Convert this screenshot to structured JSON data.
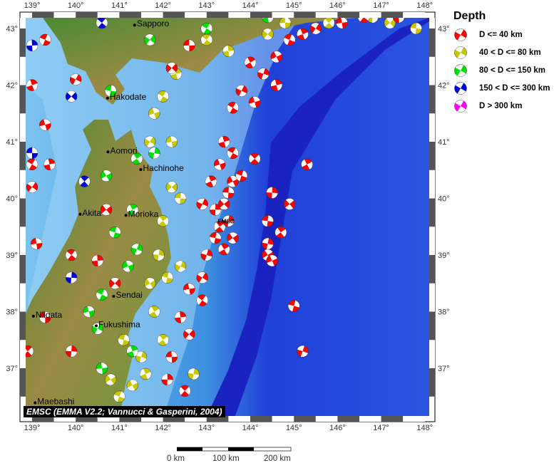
{
  "map": {
    "lon_ticks": [
      "139°",
      "140°",
      "141°",
      "142°",
      "143°",
      "144°",
      "145°",
      "146°",
      "147°",
      "148°"
    ],
    "lat_ticks": [
      "43°",
      "42°",
      "41°",
      "40°",
      "39°",
      "38°",
      "37°"
    ],
    "lon_range": [
      138.9,
      148.1
    ],
    "lat_range": [
      36.2,
      43.2
    ],
    "cities": [
      {
        "name": "Sapporo",
        "lon": 141.35,
        "lat": 43.06
      },
      {
        "name": "Hakodate",
        "lon": 140.73,
        "lat": 41.77
      },
      {
        "name": "Aomori",
        "lon": 140.74,
        "lat": 40.82
      },
      {
        "name": "Hachinohe",
        "lon": 141.49,
        "lat": 40.51
      },
      {
        "name": "Akita",
        "lon": 140.1,
        "lat": 39.72
      },
      {
        "name": "Morioka",
        "lon": 141.15,
        "lat": 39.7
      },
      {
        "name": "Sendai",
        "lon": 140.87,
        "lat": 38.27
      },
      {
        "name": "Niigata",
        "lon": 139.03,
        "lat": 37.92
      },
      {
        "name": "Fukushima",
        "lon": 140.47,
        "lat": 37.75
      },
      {
        "name": "Maebashi",
        "lon": 139.07,
        "lat": 36.39
      }
    ],
    "marker_label": "EMSC",
    "marker_label_pos": {
      "lon": 143.45,
      "lat": 39.6
    },
    "events": [
      [
        143.2,
        39.8,
        1
      ],
      [
        143.4,
        39.9,
        1
      ],
      [
        143.5,
        40.1,
        1
      ],
      [
        143.3,
        39.5,
        1
      ],
      [
        143.5,
        39.6,
        1
      ],
      [
        143.6,
        39.3,
        1
      ],
      [
        143.2,
        39.3,
        1
      ],
      [
        143.4,
        39.1,
        1
      ],
      [
        143.0,
        39.0,
        1
      ],
      [
        143.6,
        40.3,
        1
      ],
      [
        143.8,
        40.4,
        1
      ],
      [
        143.1,
        40.3,
        1
      ],
      [
        142.9,
        39.9,
        1
      ],
      [
        143.3,
        40.6,
        1
      ],
      [
        143.6,
        40.8,
        1
      ],
      [
        143.4,
        41.0,
        1
      ],
      [
        142.9,
        38.6,
        1
      ],
      [
        142.6,
        38.4,
        1
      ],
      [
        142.9,
        38.2,
        1
      ],
      [
        142.4,
        37.9,
        1
      ],
      [
        142.6,
        37.6,
        1
      ],
      [
        142.2,
        37.2,
        1
      ],
      [
        142.5,
        36.6,
        1
      ],
      [
        142.1,
        36.8,
        1
      ],
      [
        142.2,
        40.2,
        2
      ],
      [
        142.4,
        40.0,
        2
      ],
      [
        142.0,
        39.6,
        2
      ],
      [
        141.9,
        39.0,
        2
      ],
      [
        141.7,
        38.5,
        2
      ],
      [
        142.1,
        38.6,
        2
      ],
      [
        141.8,
        38.0,
        2
      ],
      [
        141.5,
        37.2,
        2
      ],
      [
        141.3,
        36.7,
        2
      ],
      [
        141.0,
        36.5,
        2
      ],
      [
        141.6,
        36.9,
        2
      ],
      [
        142.4,
        38.8,
        2
      ],
      [
        141.8,
        41.5,
        2
      ],
      [
        142.0,
        41.8,
        2
      ],
      [
        142.3,
        42.2,
        2
      ],
      [
        141.7,
        41.0,
        2
      ],
      [
        142.2,
        41.0,
        2
      ],
      [
        143.0,
        42.8,
        2
      ],
      [
        143.5,
        42.6,
        2
      ],
      [
        144.4,
        42.9,
        2
      ],
      [
        144.8,
        43.1,
        2
      ],
      [
        145.8,
        43.1,
        2
      ],
      [
        146.8,
        43.2,
        2
      ],
      [
        147.2,
        43.1,
        2
      ],
      [
        147.8,
        43.0,
        2
      ],
      [
        142.0,
        37.5,
        2
      ],
      [
        142.7,
        36.9,
        2
      ],
      [
        140.8,
        36.8,
        2
      ],
      [
        141.1,
        37.5,
        2
      ],
      [
        144.0,
        42.4,
        1
      ],
      [
        144.3,
        42.2,
        1
      ],
      [
        144.6,
        42.5,
        1
      ],
      [
        144.9,
        42.8,
        1
      ],
      [
        145.2,
        42.9,
        1
      ],
      [
        143.8,
        41.9,
        1
      ],
      [
        144.1,
        41.7,
        1
      ],
      [
        143.6,
        41.6,
        1
      ],
      [
        144.6,
        42.0,
        1
      ],
      [
        145.5,
        43.0,
        1
      ],
      [
        146.1,
        43.1,
        1
      ],
      [
        146.6,
        43.2,
        1
      ],
      [
        147.4,
        43.2,
        1
      ],
      [
        142.2,
        42.3,
        1
      ],
      [
        142.6,
        42.7,
        1
      ],
      [
        144.1,
        40.7,
        1
      ],
      [
        144.5,
        40.1,
        1
      ],
      [
        144.9,
        39.9,
        1
      ],
      [
        144.4,
        39.6,
        1
      ],
      [
        144.7,
        39.4,
        1
      ],
      [
        144.4,
        39.2,
        1
      ],
      [
        144.4,
        39.0,
        1
      ],
      [
        145.0,
        38.1,
        1
      ],
      [
        145.3,
        40.6,
        1
      ],
      [
        145.2,
        37.3,
        1
      ],
      [
        144.5,
        38.9,
        1
      ],
      [
        139.3,
        42.8,
        1
      ],
      [
        139.0,
        42.0,
        1
      ],
      [
        140.0,
        42.1,
        1
      ],
      [
        139.3,
        41.3,
        1
      ],
      [
        139.0,
        40.6,
        1
      ],
      [
        139.4,
        40.6,
        1
      ],
      [
        139.0,
        40.2,
        1
      ],
      [
        139.1,
        39.2,
        1
      ],
      [
        139.9,
        39.0,
        1
      ],
      [
        140.5,
        38.9,
        1
      ],
      [
        140.9,
        38.5,
        1
      ],
      [
        139.3,
        37.9,
        1
      ],
      [
        138.9,
        37.3,
        1
      ],
      [
        139.9,
        37.3,
        1
      ],
      [
        140.7,
        39.8,
        1
      ],
      [
        140.8,
        41.9,
        3
      ],
      [
        141.4,
        40.7,
        3
      ],
      [
        141.8,
        40.8,
        3
      ],
      [
        140.7,
        40.4,
        3
      ],
      [
        140.9,
        39.4,
        3
      ],
      [
        141.3,
        39.8,
        3
      ],
      [
        141.4,
        39.1,
        3
      ],
      [
        141.2,
        38.8,
        3
      ],
      [
        140.6,
        38.3,
        3
      ],
      [
        141.3,
        37.3,
        3
      ],
      [
        140.5,
        37.7,
        3
      ],
      [
        140.3,
        38.0,
        3
      ],
      [
        143.0,
        43.0,
        3
      ],
      [
        144.4,
        43.2,
        3
      ],
      [
        141.7,
        42.8,
        3
      ],
      [
        140.6,
        37.0,
        3
      ],
      [
        140.6,
        43.1,
        4
      ],
      [
        139.0,
        42.7,
        4
      ],
      [
        139.9,
        41.8,
        4
      ],
      [
        139.0,
        40.8,
        4
      ],
      [
        140.2,
        40.3,
        4
      ],
      [
        139.9,
        38.6,
        4
      ]
    ]
  },
  "legend": {
    "title": "Depth",
    "items": [
      {
        "label": "D <= 40 km",
        "color": "#ff0000"
      },
      {
        "label": "40 < D <= 80 km",
        "color": "#c8c800"
      },
      {
        "label": "80 < D <= 150 km",
        "color": "#00e000"
      },
      {
        "label": "150 < D <= 300 km",
        "color": "#0000e0"
      },
      {
        "label": "D > 300 km",
        "color": "#ff00ff"
      }
    ]
  },
  "attribution": "EMSC (EMMA V2.2; Vannucci & Gasperini, 2004)",
  "scale_bar": {
    "labels": [
      "0 km",
      "100 km",
      "200 km"
    ]
  }
}
